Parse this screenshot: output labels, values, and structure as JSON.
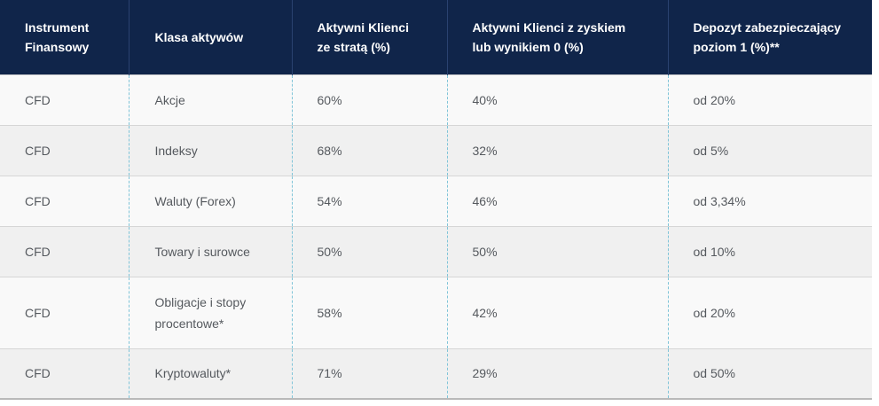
{
  "table": {
    "headers": [
      "Instrument Finansowy",
      "Klasa aktywów",
      "Aktywni Klienci ze stratą  (%)",
      "Aktywni Klienci z zyskiem lub wynikiem 0 (%)",
      "Depozyt zabezpieczający poziom 1 (%)**"
    ],
    "rows": [
      [
        "CFD",
        "Akcje",
        "60%",
        "40%",
        "od 20%"
      ],
      [
        "CFD",
        "Indeksy",
        "68%",
        "32%",
        "od 5%"
      ],
      [
        "CFD",
        "Waluty (Forex)",
        "54%",
        "46%",
        "od 3,34%"
      ],
      [
        "CFD",
        "Towary i surowce",
        "50%",
        "50%",
        "od 10%"
      ],
      [
        "CFD",
        "Obligacje i stopy procentowe*",
        "58%",
        "42%",
        "od 20%"
      ],
      [
        "CFD",
        "Kryptowaluty*",
        "71%",
        "29%",
        "od 50%"
      ]
    ]
  }
}
